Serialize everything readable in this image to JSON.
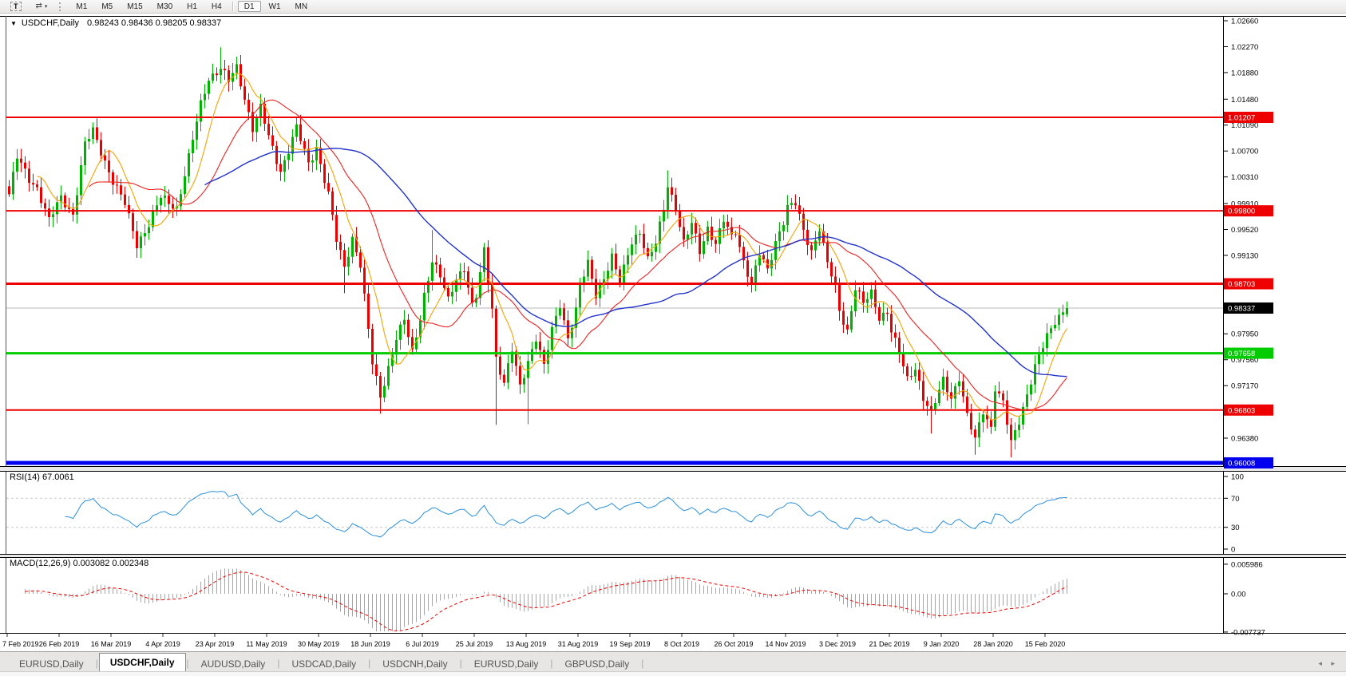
{
  "toolbar": {
    "text_tool_label": "T",
    "arrange_caret": "▾",
    "timeframes": [
      "M1",
      "M5",
      "M15",
      "M30",
      "H1",
      "H4",
      "D1",
      "W1",
      "MN"
    ],
    "active_timeframe": "D1"
  },
  "window": {
    "title_symbol": "USDCHF,Daily",
    "ohlc_text": "0.98243 0.98436 0.98205 0.98337",
    "menu_icon": "▼"
  },
  "price_axis": {
    "ticks": [
      "1.02660",
      "1.02270",
      "1.01880",
      "1.01480",
      "1.01090",
      "1.00700",
      "1.00310",
      "0.99910",
      "0.99520",
      "0.99130",
      "0.97950",
      "0.97560",
      "0.97170",
      "0.96380"
    ],
    "bid_label": {
      "text": "0.98337",
      "bg": "#000000",
      "fg": "#ffffff",
      "line_color": "#b8b8b8"
    }
  },
  "levels": [
    {
      "price": 1.01207,
      "label": "1.01207",
      "color": "#ee0000",
      "width": 2
    },
    {
      "price": 0.998,
      "label": "0.99800",
      "color": "#ee0000",
      "width": 2
    },
    {
      "price": 0.98703,
      "label": "0.98703",
      "color": "#ee0000",
      "width": 3
    },
    {
      "price": 0.97658,
      "label": "0.97658",
      "color": "#00cc00",
      "width": 3
    },
    {
      "price": 0.96803,
      "label": "0.96803",
      "color": "#ee0000",
      "width": 2
    },
    {
      "price": 0.96008,
      "label": "0.96008",
      "color": "#0000ee",
      "width": 5
    }
  ],
  "rsi_panel": {
    "label": "RSI(14) 67.0061",
    "period": 14,
    "value": "67.0061",
    "ticks": [
      "100",
      "70",
      "30",
      "0"
    ],
    "guides": [
      70,
      30
    ],
    "line_color": "#2a8fd8"
  },
  "macd_panel": {
    "label": "MACD(12,26,9) 0.003082 0.002348",
    "macd_value": "0.003082",
    "signal_value": "0.002348",
    "ticks": [
      "0.005986",
      "0.00",
      "-0.007737"
    ],
    "histogram_color": "#a6a6a6",
    "signal_color": "#ee0000"
  },
  "date_axis": [
    "7 Feb 2019",
    "26 Feb 2019",
    "16 Mar 2019",
    "4 Apr 2019",
    "23 Apr 2019",
    "11 May 2019",
    "30 May 2019",
    "18 Jun 2019",
    "6 Jul 2019",
    "25 Jul 2019",
    "13 Aug 2019",
    "31 Aug 2019",
    "19 Sep 2019",
    "8 Oct 2019",
    "26 Oct 2019",
    "14 Nov 2019",
    "3 Dec 2019",
    "21 Dec 2019",
    "9 Jan 2020",
    "28 Jan 2020",
    "15 Feb 2020"
  ],
  "tabs": {
    "items": [
      "EURUSD,Daily",
      "USDCHF,Daily",
      "AUDUSD,Daily",
      "USDCAD,Daily",
      "USDCNH,Daily",
      "EURUSD,Daily",
      "GBPUSD,Daily"
    ],
    "active_index": 1,
    "scroll_left": "◂",
    "scroll_right": "▸"
  },
  "chart_data": {
    "type": "candlestick",
    "symbol": "USDCHF",
    "timeframe": "Daily",
    "current_ohlc": {
      "open": 0.98243,
      "high": 0.98436,
      "low": 0.98205,
      "close": 0.98337
    },
    "x_range_dates": [
      "7 Feb 2019",
      "21 Feb 2020"
    ],
    "y_axis_range": [
      0.9596,
      1.0271
    ],
    "num_candles": 266,
    "bull_color": "#00b200",
    "bear_color": "#e80000",
    "levels": [
      1.01207,
      0.998,
      0.98703,
      0.97658,
      0.96803,
      0.96008
    ],
    "moving_averages": [
      {
        "period": 8,
        "color": "#f5a300"
      },
      {
        "period": 21,
        "color": "#ee2222"
      },
      {
        "period": 50,
        "color": "#2233cc"
      }
    ],
    "indicators": {
      "rsi": {
        "period": 14,
        "last_value": 67.0061,
        "guides": [
          70,
          30
        ]
      },
      "macd": {
        "fast": 12,
        "slow": 26,
        "signal": 9,
        "last_macd": 0.003082,
        "last_signal": 0.002348,
        "axis_max": 0.005986,
        "axis_min": -0.007737
      }
    },
    "price_path_anchors": [
      [
        0,
        1.0005
      ],
      [
        2,
        1.006
      ],
      [
        5,
        1.0028
      ],
      [
        7,
        1.0015
      ],
      [
        10,
        0.9965
      ],
      [
        13,
        1.0
      ],
      [
        16,
        0.9975
      ],
      [
        19,
        1.008
      ],
      [
        21,
        1.01
      ],
      [
        24,
        1.0055
      ],
      [
        26,
        1.0025
      ],
      [
        29,
        0.999
      ],
      [
        32,
        0.993
      ],
      [
        35,
        0.996
      ],
      [
        38,
        1.0
      ],
      [
        42,
        0.9985
      ],
      [
        45,
        1.006
      ],
      [
        48,
        1.014
      ],
      [
        50,
        1.018
      ],
      [
        53,
        1.0195
      ],
      [
        55,
        1.0175
      ],
      [
        57,
        1.0195
      ],
      [
        59,
        1.015
      ],
      [
        61,
        1.0105
      ],
      [
        63,
        1.0135
      ],
      [
        65,
        1.009
      ],
      [
        68,
        1.004
      ],
      [
        72,
        1.0105
      ],
      [
        75,
        1.005
      ],
      [
        77,
        1.0075
      ],
      [
        80,
        1.0005
      ],
      [
        82,
        0.9935
      ],
      [
        84,
        0.9895
      ],
      [
        86,
        0.994
      ],
      [
        88,
        0.99
      ],
      [
        90,
        0.98
      ],
      [
        91,
        0.975
      ],
      [
        93,
        0.97
      ],
      [
        95,
        0.9745
      ],
      [
        97,
        0.979
      ],
      [
        99,
        0.9815
      ],
      [
        101,
        0.9765
      ],
      [
        103,
        0.982
      ],
      [
        104,
        0.9855
      ],
      [
        106,
        0.9905
      ],
      [
        108,
        0.988
      ],
      [
        110,
        0.9845
      ],
      [
        112,
        0.988
      ],
      [
        114,
        0.9895
      ],
      [
        116,
        0.9835
      ],
      [
        117,
        0.985
      ],
      [
        119,
        0.992
      ],
      [
        121,
        0.9835
      ],
      [
        122,
        0.976
      ],
      [
        124,
        0.972
      ],
      [
        126,
        0.977
      ],
      [
        128,
        0.9715
      ],
      [
        130,
        0.9755
      ],
      [
        132,
        0.979
      ],
      [
        134,
        0.9745
      ],
      [
        136,
        0.98
      ],
      [
        138,
        0.984
      ],
      [
        140,
        0.979
      ],
      [
        142,
        0.983
      ],
      [
        143,
        0.9865
      ],
      [
        145,
        0.99
      ],
      [
        147,
        0.9855
      ],
      [
        149,
        0.988
      ],
      [
        151,
        0.991
      ],
      [
        153,
        0.987
      ],
      [
        155,
        0.9915
      ],
      [
        156,
        0.9935
      ],
      [
        158,
        0.995
      ],
      [
        160,
        0.9905
      ],
      [
        162,
        0.993
      ],
      [
        164,
        0.9985
      ],
      [
        165,
        1.002
      ],
      [
        167,
        0.9985
      ],
      [
        169,
        0.993
      ],
      [
        171,
        0.996
      ],
      [
        173,
        0.992
      ],
      [
        175,
        0.9955
      ],
      [
        177,
        0.993
      ],
      [
        179,
        0.9965
      ],
      [
        181,
        0.994
      ],
      [
        182,
        0.995
      ],
      [
        184,
        0.9905
      ],
      [
        186,
        0.987
      ],
      [
        188,
        0.9915
      ],
      [
        190,
        0.989
      ],
      [
        192,
        0.9935
      ],
      [
        194,
        0.9965
      ],
      [
        195,
        0.9985
      ],
      [
        197,
        0.999
      ],
      [
        199,
        0.995
      ],
      [
        201,
        0.992
      ],
      [
        203,
        0.9955
      ],
      [
        205,
        0.99
      ],
      [
        207,
        0.9865
      ],
      [
        208,
        0.983
      ],
      [
        210,
        0.98
      ],
      [
        212,
        0.9865
      ],
      [
        214,
        0.984
      ],
      [
        216,
        0.9855
      ],
      [
        218,
        0.982
      ],
      [
        220,
        0.983
      ],
      [
        221,
        0.98
      ],
      [
        223,
        0.9765
      ],
      [
        225,
        0.9725
      ],
      [
        227,
        0.9745
      ],
      [
        229,
        0.97
      ],
      [
        231,
        0.9675
      ],
      [
        234,
        0.9725
      ],
      [
        236,
        0.97
      ],
      [
        238,
        0.973
      ],
      [
        240,
        0.967
      ],
      [
        242,
        0.9635
      ],
      [
        244,
        0.968
      ],
      [
        246,
        0.9655
      ],
      [
        247,
        0.9715
      ],
      [
        249,
        0.969
      ],
      [
        251,
        0.963
      ],
      [
        253,
        0.9665
      ],
      [
        255,
        0.9705
      ],
      [
        257,
        0.9745
      ],
      [
        259,
        0.9775
      ],
      [
        260,
        0.979
      ],
      [
        262,
        0.9815
      ],
      [
        264,
        0.983
      ],
      [
        265,
        0.98337
      ]
    ],
    "candle_overrides": {
      "2": {
        "h": 1.0073
      },
      "21": {
        "h": 1.0113
      },
      "53": {
        "h": 1.0226
      },
      "57": {
        "h": 1.0212
      },
      "72": {
        "h": 1.0122
      },
      "84": {
        "l": 0.9856
      },
      "93": {
        "l": 0.9675
      },
      "106": {
        "h": 0.9951
      },
      "119": {
        "h": 0.9932
      },
      "122": {
        "l": 0.9658
      },
      "130": {
        "l": 0.9659
      },
      "165": {
        "h": 1.0041
      },
      "210": {
        "l": 0.9794
      },
      "231": {
        "l": 0.9645
      },
      "242": {
        "l": 0.9613
      },
      "251": {
        "l": 0.9609
      },
      "265": {
        "o": 0.98243,
        "h": 0.98436,
        "l": 0.98205,
        "c": 0.98337
      }
    }
  }
}
